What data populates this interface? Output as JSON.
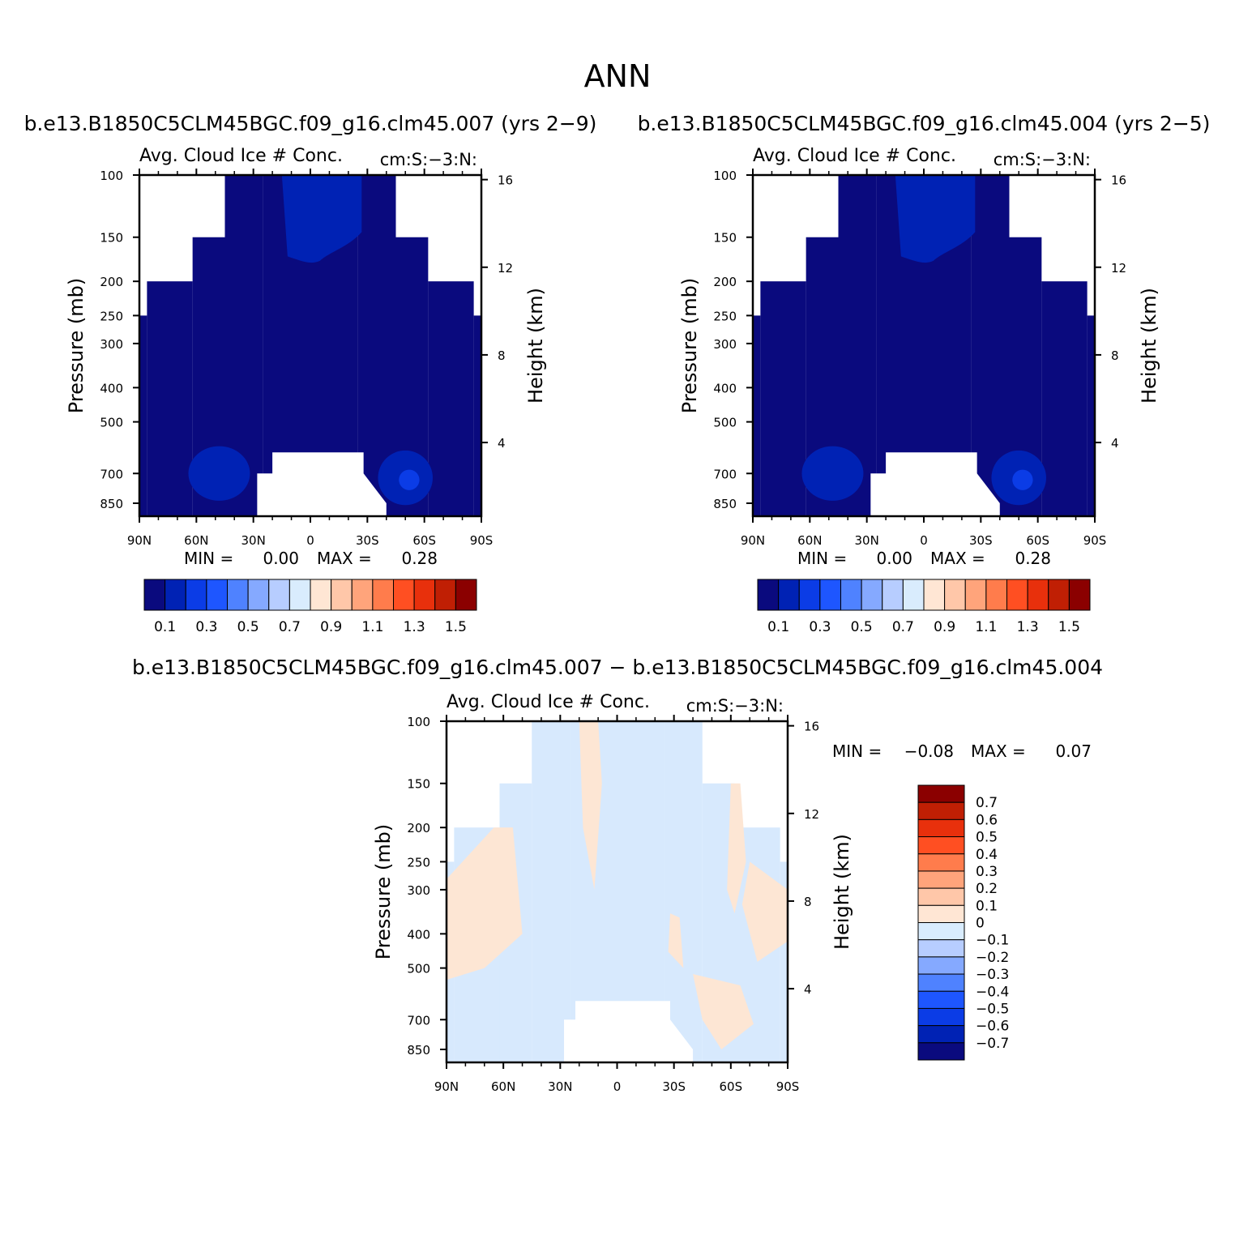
{
  "figure": {
    "title": "ANN",
    "top_left_header": "b.e13.B1850C5CLM45BGC.f09_g16.clm45.007 (yrs 2−9)",
    "top_right_header": "b.e13.B1850C5CLM45BGC.f09_g16.clm45.004 (yrs 2−5)",
    "bottom_header": "b.e13.B1850C5CLM45BGC.f09_g16.clm45.007 − b.e13.B1850C5CLM45BGC.f09_g16.clm45.004"
  },
  "chart_data": [
    {
      "id": "panel-007",
      "type": "heatmap",
      "variable": "Avg. Cloud Ice # Conc.",
      "units": "cm:S:−3:N:",
      "xlabel": "",
      "ylabel": "Pressure (mb)",
      "y2label": "Height (km)",
      "x_ticks": [
        "90N",
        "60N",
        "30N",
        "0",
        "30S",
        "60S",
        "90S"
      ],
      "x_range": [
        90,
        -90
      ],
      "y_ticks": [
        100,
        150,
        200,
        250,
        300,
        400,
        500,
        700,
        850
      ],
      "y_range": [
        100,
        925
      ],
      "y_scale": "log",
      "y2_ticks": [
        16,
        12,
        8,
        4
      ],
      "stats": {
        "min_label": "MIN =",
        "min": "0.00",
        "max_label": "MAX =",
        "max": "0.28"
      },
      "colorbar": {
        "orientation": "horizontal",
        "colors": [
          "#0a0a7e",
          "#0022b4",
          "#0b3ce6",
          "#1e56ff",
          "#4f82ff",
          "#85a9ff",
          "#b7cdff",
          "#d9ecfd",
          "#ffe6d4",
          "#ffc7a9",
          "#ffa47b",
          "#ff7c4c",
          "#ff4f22",
          "#e8300c",
          "#c01f04",
          "#8b0000"
        ],
        "labels": [
          "0.1",
          "0.3",
          "0.5",
          "0.7",
          "0.9",
          "1.1",
          "1.3",
          "1.5"
        ]
      },
      "fill_levels": [
        "below 0.1 almost everywhere",
        "0.1–0.2 in upper tropics and low-level mid-latitude cores"
      ]
    },
    {
      "id": "panel-004",
      "type": "heatmap",
      "variable": "Avg. Cloud Ice # Conc.",
      "units": "cm:S:−3:N:",
      "xlabel": "",
      "ylabel": "Pressure (mb)",
      "y2label": "Height (km)",
      "x_ticks": [
        "90N",
        "60N",
        "30N",
        "0",
        "30S",
        "60S",
        "90S"
      ],
      "x_range": [
        90,
        -90
      ],
      "y_ticks": [
        100,
        150,
        200,
        250,
        300,
        400,
        500,
        700,
        850
      ],
      "y_range": [
        100,
        925
      ],
      "y_scale": "log",
      "y2_ticks": [
        16,
        12,
        8,
        4
      ],
      "stats": {
        "min_label": "MIN =",
        "min": "0.00",
        "max_label": "MAX =",
        "max": "0.28"
      },
      "colorbar": {
        "orientation": "horizontal",
        "colors": [
          "#0a0a7e",
          "#0022b4",
          "#0b3ce6",
          "#1e56ff",
          "#4f82ff",
          "#85a9ff",
          "#b7cdff",
          "#d9ecfd",
          "#ffe6d4",
          "#ffc7a9",
          "#ffa47b",
          "#ff7c4c",
          "#ff4f22",
          "#e8300c",
          "#c01f04",
          "#8b0000"
        ],
        "labels": [
          "0.1",
          "0.3",
          "0.5",
          "0.7",
          "0.9",
          "1.1",
          "1.3",
          "1.5"
        ]
      },
      "fill_levels": [
        "below 0.1 almost everywhere",
        "0.1–0.2 in upper tropics and low-level mid-latitude cores"
      ]
    },
    {
      "id": "panel-diff",
      "type": "heatmap",
      "variable": "Avg. Cloud Ice # Conc.",
      "units": "cm:S:−3:N:",
      "xlabel": "",
      "ylabel": "Pressure (mb)",
      "y2label": "Height (km)",
      "x_ticks": [
        "90N",
        "60N",
        "30N",
        "0",
        "30S",
        "60S",
        "90S"
      ],
      "x_range": [
        90,
        -90
      ],
      "y_ticks": [
        100,
        150,
        200,
        250,
        300,
        400,
        500,
        700,
        850
      ],
      "y_range": [
        100,
        925
      ],
      "y_scale": "log",
      "y2_ticks": [
        16,
        12,
        8,
        4
      ],
      "stats": {
        "min_label": "MIN =",
        "min": "−0.08",
        "max_label": "MAX =",
        "max": "0.07"
      },
      "colorbar": {
        "orientation": "vertical",
        "colors": [
          "#0a0a7e",
          "#0022b4",
          "#0b3ce6",
          "#1e56ff",
          "#4f82ff",
          "#85a9ff",
          "#b7cdff",
          "#d9ecfd",
          "#ffe6d4",
          "#ffc7a9",
          "#ffa47b",
          "#ff7c4c",
          "#ff4f22",
          "#e8300c",
          "#c01f04",
          "#8b0000"
        ],
        "labels": [
          "0.7",
          "0.6",
          "0.5",
          "0.4",
          "0.3",
          "0.2",
          "0.1",
          "0",
          "−0.1",
          "−0.2",
          "−0.3",
          "−0.4",
          "−0.5",
          "−0.6",
          "−0.7"
        ]
      },
      "fill_levels": [
        "−0.1 to 0 (light blue) and 0 to 0.1 (light peach) patches"
      ]
    }
  ]
}
